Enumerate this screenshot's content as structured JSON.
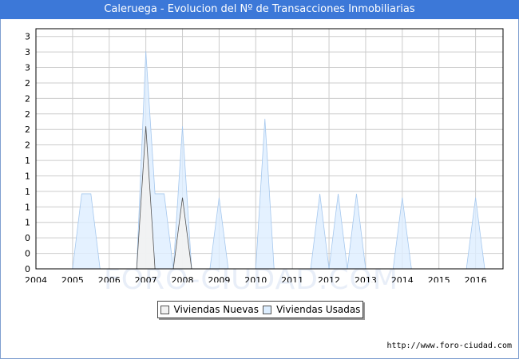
{
  "title": "Caleruega - Evolucion del Nº de Transacciones Inmobiliarias",
  "watermark": "FORO-CIUDAD.COM",
  "source": "http://www.foro-ciudad.com",
  "colors": {
    "title_bg": "#3c78d8",
    "nuevas_fill": "#f2f2f2",
    "usadas_fill": "#ddeeff",
    "usadas_stroke": "#a6c8ee",
    "grid": "#cccccc"
  },
  "chart_data": {
    "type": "area",
    "title": "Caleruega - Evolucion del Nº de Transacciones Inmobiliarias",
    "xlabel": "",
    "ylabel": "",
    "x_ticks": [
      "2004",
      "2005",
      "2006",
      "2007",
      "2008",
      "2009",
      "2010",
      "2011",
      "2012",
      "2013",
      "2014",
      "2015",
      "2016"
    ],
    "y_ticks": [
      "0",
      "0",
      "0",
      "1",
      "1",
      "1",
      "1",
      "1",
      "2",
      "2",
      "2",
      "2",
      "2",
      "3",
      "3",
      "3"
    ],
    "xlim": [
      2004,
      2016.75
    ],
    "ylim": [
      0,
      3.2
    ],
    "grid": true,
    "legend": "bottom-center",
    "series": [
      {
        "name": "Viviendas Nuevas",
        "points": [
          [
            2006.75,
            0
          ],
          [
            2007.0,
            1.9
          ],
          [
            2007.25,
            0
          ],
          [
            2007.75,
            0
          ],
          [
            2008.0,
            0.95
          ],
          [
            2008.25,
            0
          ]
        ]
      },
      {
        "name": "Viviendas Usadas",
        "points": [
          [
            2005.0,
            0
          ],
          [
            2005.25,
            1
          ],
          [
            2005.5,
            1
          ],
          [
            2005.75,
            0
          ],
          [
            2006.75,
            0
          ],
          [
            2007.0,
            2.9
          ],
          [
            2007.25,
            1
          ],
          [
            2007.5,
            1
          ],
          [
            2007.75,
            0
          ],
          [
            2007.75,
            0
          ],
          [
            2008.0,
            1.9
          ],
          [
            2008.25,
            0
          ],
          [
            2008.75,
            0
          ],
          [
            2009.0,
            0.95
          ],
          [
            2009.25,
            0
          ],
          [
            2010.0,
            0
          ],
          [
            2010.25,
            2
          ],
          [
            2010.5,
            0
          ],
          [
            2011.5,
            0
          ],
          [
            2011.75,
            1
          ],
          [
            2012.0,
            0
          ],
          [
            2012.25,
            1
          ],
          [
            2012.5,
            0
          ],
          [
            2012.75,
            1
          ],
          [
            2013.0,
            0
          ],
          [
            2013.75,
            0
          ],
          [
            2014.0,
            0.95
          ],
          [
            2014.25,
            0
          ],
          [
            2015.75,
            0
          ],
          [
            2016.0,
            0.95
          ],
          [
            2016.25,
            0
          ]
        ]
      }
    ]
  }
}
